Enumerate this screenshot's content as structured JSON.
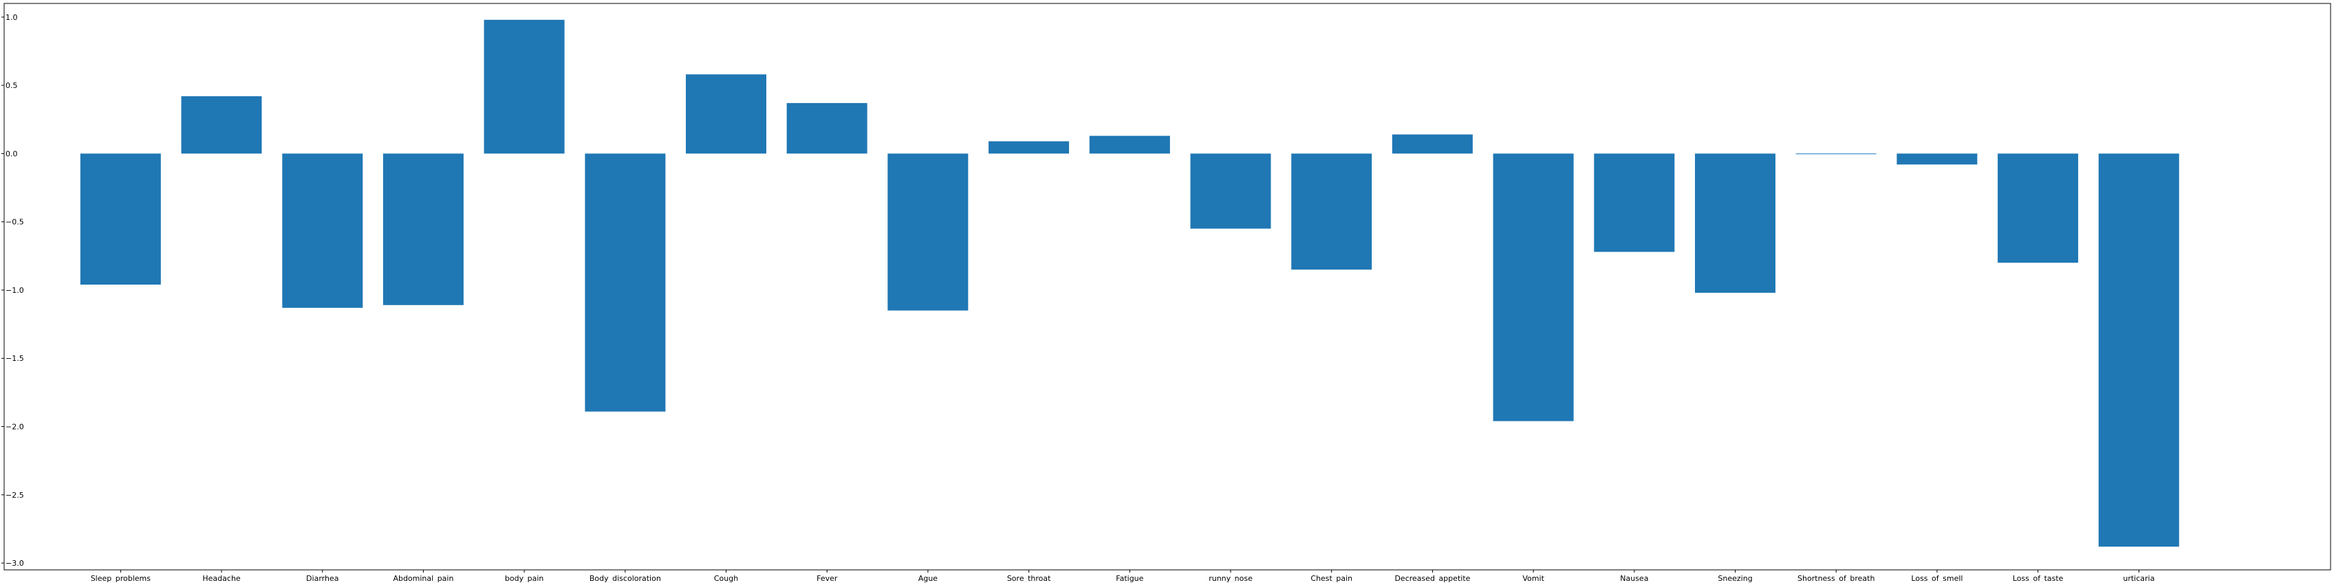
{
  "chart_data": {
    "type": "bar",
    "title": "",
    "xlabel": "",
    "ylabel": "",
    "ylim": [
      -3.05,
      1.1
    ],
    "yticks": [
      1.0,
      0.5,
      0.0,
      -0.5,
      -1.0,
      -1.5,
      -2.0,
      -2.5,
      -3.0
    ],
    "ytick_labels": [
      "1.0",
      "0.5",
      "0.0",
      "−0.5",
      "−1.0",
      "−1.5",
      "−2.0",
      "−2.5",
      "−3.0"
    ],
    "grid": false,
    "legend": "none",
    "categories": [
      "Sleep_problems",
      "Headache",
      "Diarrhea",
      "Abdominal_pain",
      "body_pain",
      "Body_discoloration",
      "Cough",
      "Fever",
      "Ague",
      "Sore_throat",
      "Fatigue",
      "runny_nose",
      "Chest_pain",
      "Decreased_appetite",
      "Vomit",
      "Nausea",
      "Sneezing",
      "Shortness_of_breath",
      "Loss_of_smell",
      "Loss_of_taste",
      "urticaria"
    ],
    "values": [
      -0.96,
      0.42,
      -1.13,
      -1.11,
      0.98,
      -1.89,
      0.58,
      0.37,
      -1.15,
      0.09,
      0.13,
      -0.55,
      -0.85,
      0.14,
      -1.96,
      -0.72,
      -1.02,
      0.005,
      -0.08,
      -0.8,
      -2.88
    ],
    "colors": {
      "bar": "#1f77b4",
      "axis": "#000000",
      "background": "#ffffff"
    }
  }
}
